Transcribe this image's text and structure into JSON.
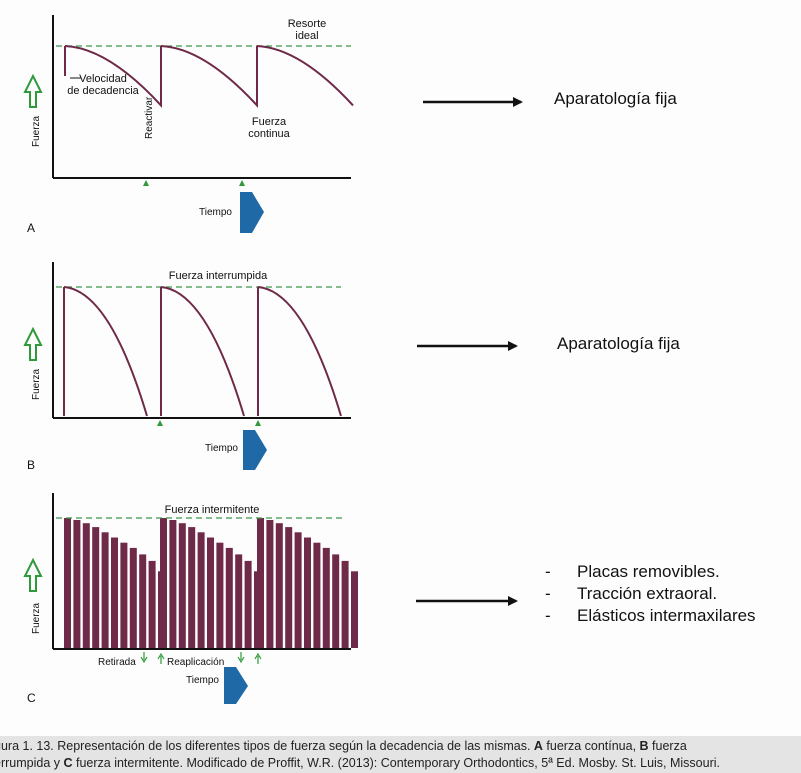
{
  "chart_data": [
    {
      "type": "line",
      "panel_letter": "A",
      "ylabel": "Fuerza",
      "xlabel": "Tiempo",
      "annotations": [
        "Resorte ideal",
        "Velocidad de decadencia",
        "Reactivar",
        "Fuerza continua"
      ],
      "series": [
        {
          "x": [
            0,
            1,
            1,
            2,
            2,
            3
          ],
          "y": [
            1,
            0.55,
            1,
            0.55,
            1,
            0.55
          ]
        }
      ]
    },
    {
      "type": "line",
      "panel_letter": "B",
      "ylabel": "Fuerza",
      "xlabel": "Tiempo",
      "annotations": [
        "Fuerza interrumpida"
      ],
      "series": [
        {
          "x": [
            0,
            1,
            1,
            2,
            2,
            3
          ],
          "y": [
            1,
            0,
            1,
            0,
            1,
            0
          ]
        }
      ]
    },
    {
      "type": "bar",
      "panel_letter": "C",
      "ylabel": "Fuerza",
      "xlabel": "Tiempo",
      "annotations": [
        "Fuerza intermitente",
        "Retirada",
        "Reaplicación"
      ],
      "values": [
        1,
        0.985,
        0.96,
        0.93,
        0.89,
        0.85,
        0.81,
        0.77,
        0.72,
        0.67,
        0.59,
        1,
        0.985,
        0.96,
        0.93,
        0.89,
        0.85,
        0.81,
        0.77,
        0.72,
        0.67,
        0.59,
        1,
        0.985,
        0.96,
        0.93,
        0.89,
        0.85,
        0.81,
        0.77,
        0.72,
        0.67,
        0.59
      ]
    }
  ],
  "labels": {
    "letterA": "A",
    "letterB": "B",
    "letterC": "C",
    "fuerza": "Fuerza",
    "tiempo": "Tiempo",
    "resorte1": "Resorte",
    "resorte2": "ideal",
    "velocidad1": "Velocidad",
    "velocidad2": "de decadencia",
    "reactivar": "Reactivar",
    "continua1": "Fuerza",
    "continua2": "continua",
    "interrumpida": "Fuerza interrumpida",
    "intermitente": "Fuerza intermitente",
    "retirada": "Retirada",
    "reaplicacion": "Reaplicación"
  },
  "right": {
    "aparatologia1": "Aparatología fija",
    "aparatologia2": "Aparatología fija",
    "bullet_dash": "-",
    "bullets": [
      "Placas removibles.",
      "Tracción extraoral.",
      "Elásticos intermaxilares"
    ]
  },
  "caption": {
    "line1_pre": "gura 1. 13. Representación de los diferentes tipos de fuerza según la decadencia de las mismas. ",
    "a": "A",
    "line1_mid": " fuerza contínua, ",
    "b": "B",
    "line1_post": " fuerza",
    "line2_pre": "errumpida y ",
    "c": "C",
    "line2_post": " fuerza intermitente. Modificado de Proffit, W.R. (2013): Contemporary Orthodontics, 5ª Ed. Mosby. St. Luis, Missouri."
  },
  "colors": {
    "curve": "#6e2a48",
    "dashed": "#3a9a4a",
    "time_arrow": "#1f6aa6",
    "force_arrow": "#2e9a3a",
    "axis": "#111111"
  }
}
